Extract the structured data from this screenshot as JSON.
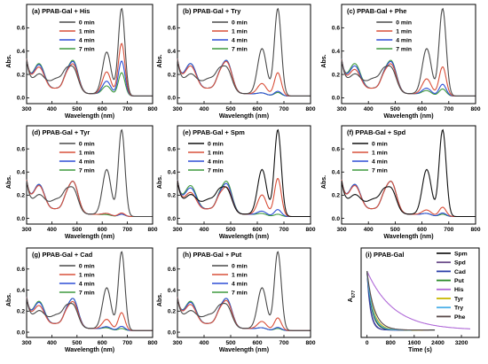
{
  "chart_data": [
    {
      "type": "line",
      "title": "(a) PPAB-Gal + His",
      "xlabel": "Wavelength (nm)",
      "ylabel": "Abs.",
      "xlim": [
        300,
        800
      ],
      "ylim": [
        -0.05,
        0.8
      ],
      "xticks": [
        300,
        400,
        500,
        600,
        700,
        800
      ],
      "yticks": [
        0.0,
        0.2,
        0.4,
        0.6
      ],
      "legend_position": "upper-middle",
      "series": [
        {
          "name": "0 min",
          "color": "#4a4a4a",
          "peaks": {
            "p1": 0.15,
            "p2": 0.2,
            "p3": 0.37,
            "p4": 0.75
          }
        },
        {
          "name": "1 min",
          "color": "#d9503a",
          "peaks": {
            "p1": 0.22,
            "p2": 0.25,
            "p3": 0.2,
            "p4": 0.45
          }
        },
        {
          "name": "4 min",
          "color": "#2e4fd6",
          "peaks": {
            "p1": 0.24,
            "p2": 0.27,
            "p3": 0.12,
            "p4": 0.3
          }
        },
        {
          "name": "7 min",
          "color": "#3f9a3f",
          "peaks": {
            "p1": 0.25,
            "p2": 0.28,
            "p3": 0.08,
            "p4": 0.2
          }
        }
      ]
    },
    {
      "type": "line",
      "title": "(b) PPAB-Gal + Try",
      "xlabel": "Wavelength (nm)",
      "ylabel": "Abs.",
      "xlim": [
        300,
        800
      ],
      "ylim": [
        -0.05,
        0.8
      ],
      "xticks": [
        300,
        400,
        500,
        600,
        700,
        800
      ],
      "yticks": [
        0.0,
        0.2,
        0.4,
        0.6
      ],
      "legend_position": "upper-middle",
      "series": [
        {
          "name": "0 min",
          "color": "#4a4a4a",
          "peaks": {
            "p1": 0.15,
            "p2": 0.2,
            "p3": 0.4,
            "p4": 0.75
          }
        },
        {
          "name": "1 min",
          "color": "#d9503a",
          "peaks": {
            "p1": 0.23,
            "p2": 0.27,
            "p3": 0.1,
            "p4": 0.2
          }
        },
        {
          "name": "4 min",
          "color": "#2e4fd6",
          "peaks": {
            "p1": 0.25,
            "p2": 0.28,
            "p3": 0.02,
            "p4": 0.04
          }
        },
        {
          "name": "7 min",
          "color": "#3f9a3f",
          "peaks": {
            "p1": 0.25,
            "p2": 0.28,
            "p3": 0.02,
            "p4": 0.03
          }
        }
      ]
    },
    {
      "type": "line",
      "title": "(c) PPAB-Gal + Phe",
      "xlabel": "Wavelength (nm)",
      "ylabel": "Abs.",
      "xlim": [
        300,
        800
      ],
      "ylim": [
        -0.05,
        0.8
      ],
      "xticks": [
        300,
        400,
        500,
        600,
        700,
        800
      ],
      "yticks": [
        0.0,
        0.2,
        0.4,
        0.6
      ],
      "legend_position": "upper-middle",
      "series": [
        {
          "name": "0 min",
          "color": "#4a4a4a",
          "peaks": {
            "p1": 0.15,
            "p2": 0.2,
            "p3": 0.4,
            "p4": 0.75
          }
        },
        {
          "name": "1 min",
          "color": "#d9503a",
          "peaks": {
            "p1": 0.2,
            "p2": 0.25,
            "p3": 0.14,
            "p4": 0.25
          }
        },
        {
          "name": "4 min",
          "color": "#2e4fd6",
          "peaks": {
            "p1": 0.23,
            "p2": 0.27,
            "p3": 0.06,
            "p4": 0.1
          }
        },
        {
          "name": "7 min",
          "color": "#3f9a3f",
          "peaks": {
            "p1": 0.25,
            "p2": 0.28,
            "p3": 0.04,
            "p4": 0.06
          }
        }
      ]
    },
    {
      "type": "line",
      "title": "(d) PPAB-Gal + Tyr",
      "xlabel": "Wavelength (nm)",
      "ylabel": "Abs.",
      "xlim": [
        300,
        800
      ],
      "ylim": [
        -0.05,
        0.8
      ],
      "xticks": [
        300,
        400,
        500,
        600,
        700,
        800
      ],
      "yticks": [
        0.0,
        0.2,
        0.4,
        0.6
      ],
      "legend_position": "upper-middle",
      "series": [
        {
          "name": "0 min",
          "color": "#4a4a4a",
          "peaks": {
            "p1": 0.15,
            "p2": 0.2,
            "p3": 0.4,
            "p4": 0.75
          }
        },
        {
          "name": "1 min",
          "color": "#d9503a",
          "peaks": {
            "p1": 0.24,
            "p2": 0.28,
            "p3": 0.02,
            "p4": 0.03
          }
        },
        {
          "name": "4 min",
          "color": "#2e4fd6",
          "peaks": {
            "p1": 0.25,
            "p2": 0.28,
            "p3": 0.02,
            "p4": 0.02
          }
        },
        {
          "name": "7 min",
          "color": "#3f9a3f",
          "peaks": {
            "p1": 0.25,
            "p2": 0.28,
            "p3": 0.01,
            "p4": 0.02
          }
        }
      ]
    },
    {
      "type": "line",
      "title": "(e) PPAB-Gal + Spm",
      "xlabel": "Wavelength (nm)",
      "ylabel": "Abs.",
      "xlim": [
        300,
        800
      ],
      "ylim": [
        -0.05,
        0.8
      ],
      "xticks": [
        300,
        400,
        500,
        600,
        700,
        800
      ],
      "yticks": [
        0.0,
        0.2,
        0.4,
        0.6
      ],
      "legend_position": "upper-left",
      "series": [
        {
          "name": "0 min",
          "color": "#111111",
          "peaks": {
            "p1": 0.15,
            "p2": 0.2,
            "p3": 0.4,
            "p4": 0.75
          }
        },
        {
          "name": "1 min",
          "color": "#d9503a",
          "peaks": {
            "p1": 0.18,
            "p2": 0.23,
            "p3": 0.18,
            "p4": 0.33
          }
        },
        {
          "name": "4 min",
          "color": "#2e4fd6",
          "peaks": {
            "p1": 0.22,
            "p2": 0.26,
            "p3": 0.04,
            "p4": 0.06
          }
        },
        {
          "name": "7 min",
          "color": "#3f9a3f",
          "peaks": {
            "p1": 0.24,
            "p2": 0.28,
            "p3": 0.02,
            "p4": 0.02
          }
        }
      ]
    },
    {
      "type": "line",
      "title": "(f) PPAB-Gal + Spd",
      "xlabel": "Wavelength (nm)",
      "ylabel": "Abs.",
      "xlim": [
        300,
        800
      ],
      "ylim": [
        -0.05,
        0.8
      ],
      "xticks": [
        300,
        400,
        500,
        600,
        700,
        800
      ],
      "yticks": [
        0.0,
        0.2,
        0.4,
        0.6
      ],
      "legend_position": "upper-left",
      "series": [
        {
          "name": "0 min",
          "color": "#111111",
          "peaks": {
            "p1": 0.15,
            "p2": 0.2,
            "p3": 0.4,
            "p4": 0.75
          }
        },
        {
          "name": "1 min",
          "color": "#d9503a",
          "peaks": {
            "p1": 0.24,
            "p2": 0.28,
            "p3": 0.05,
            "p4": 0.08
          }
        },
        {
          "name": "4 min",
          "color": "#2e4fd6",
          "peaks": {
            "p1": 0.25,
            "p2": 0.28,
            "p3": 0.02,
            "p4": 0.03
          }
        },
        {
          "name": "7 min",
          "color": "#3f9a3f",
          "peaks": {
            "p1": 0.25,
            "p2": 0.28,
            "p3": 0.02,
            "p4": 0.02
          }
        }
      ]
    },
    {
      "type": "line",
      "title": "(g) PPAB-Gal + Cad",
      "xlabel": "Wavelength (nm)",
      "ylabel": "Abs.",
      "xlim": [
        300,
        800
      ],
      "ylim": [
        -0.05,
        0.8
      ],
      "xticks": [
        300,
        400,
        500,
        600,
        700,
        800
      ],
      "yticks": [
        0.0,
        0.2,
        0.4,
        0.6
      ],
      "legend_position": "upper-middle",
      "series": [
        {
          "name": "0 min",
          "color": "#4a4a4a",
          "peaks": {
            "p1": 0.15,
            "p2": 0.2,
            "p3": 0.4,
            "p4": 0.75
          }
        },
        {
          "name": "1 min",
          "color": "#d9503a",
          "peaks": {
            "p1": 0.21,
            "p2": 0.25,
            "p3": 0.1,
            "p4": 0.17
          }
        },
        {
          "name": "4 min",
          "color": "#2e4fd6",
          "peaks": {
            "p1": 0.24,
            "p2": 0.28,
            "p3": 0.03,
            "p4": 0.04
          }
        },
        {
          "name": "7 min",
          "color": "#3f9a3f",
          "peaks": {
            "p1": 0.25,
            "p2": 0.28,
            "p3": 0.02,
            "p4": 0.02
          }
        }
      ]
    },
    {
      "type": "line",
      "title": "(h) PPAB-Gal + Put",
      "xlabel": "Wavelength (nm)",
      "ylabel": "Abs.",
      "xlim": [
        300,
        800
      ],
      "ylim": [
        -0.05,
        0.8
      ],
      "xticks": [
        300,
        400,
        500,
        600,
        700,
        800
      ],
      "yticks": [
        0.0,
        0.2,
        0.4,
        0.6
      ],
      "legend_position": "upper-middle",
      "series": [
        {
          "name": "0 min",
          "color": "#4a4a4a",
          "peaks": {
            "p1": 0.15,
            "p2": 0.2,
            "p3": 0.4,
            "p4": 0.75
          }
        },
        {
          "name": "1 min",
          "color": "#d9503a",
          "peaks": {
            "p1": 0.22,
            "p2": 0.26,
            "p3": 0.08,
            "p4": 0.12
          }
        },
        {
          "name": "4 min",
          "color": "#2e4fd6",
          "peaks": {
            "p1": 0.24,
            "p2": 0.28,
            "p3": 0.02,
            "p4": 0.03
          }
        },
        {
          "name": "7 min",
          "color": "#3f9a3f",
          "peaks": {
            "p1": 0.25,
            "p2": 0.28,
            "p3": 0.02,
            "p4": 0.02
          }
        }
      ]
    },
    {
      "type": "line",
      "title": "(i) PPAB-Gal",
      "xlabel": "Time (s)",
      "ylabel": "A677",
      "xlim": [
        -200,
        3800
      ],
      "ylim": [
        -0.05,
        0.8
      ],
      "xticks": [
        0,
        800,
        1600,
        2400,
        3200
      ],
      "yticks": [],
      "legend_position": "right",
      "series": [
        {
          "name": "Spm",
          "color": "#222222",
          "tau": 160,
          "tmax": 2300
        },
        {
          "name": "Spd",
          "color": "#6b4c8a",
          "tau": 110,
          "tmax": 1900
        },
        {
          "name": "Cad",
          "color": "#2b3fa8",
          "tau": 120,
          "tmax": 1700
        },
        {
          "name": "Put",
          "color": "#2a8a2a",
          "tau": 170,
          "tmax": 1700
        },
        {
          "name": "His",
          "color": "#b06ad8",
          "tau": 900,
          "tmax": 3500
        },
        {
          "name": "Tyr",
          "color": "#c8b800",
          "tau": 200,
          "tmax": 1900
        },
        {
          "name": "Try",
          "color": "#4cb0e8",
          "tau": 180,
          "tmax": 1500
        },
        {
          "name": "Phe",
          "color": "#5a4a4a",
          "tau": 240,
          "tmax": 2100
        }
      ]
    }
  ]
}
